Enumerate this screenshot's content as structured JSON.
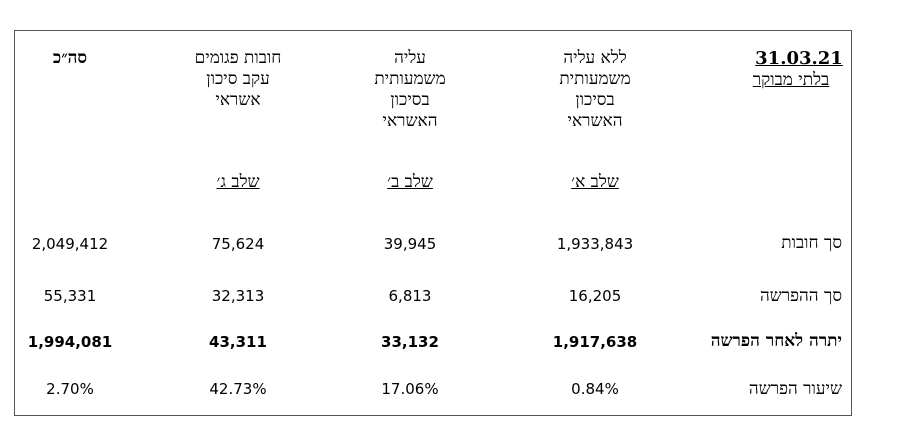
{
  "date_header": {
    "date": "31.03.21",
    "subtitle": "בלתי מבוקר"
  },
  "columns": [
    {
      "header": [
        "ללא עליה",
        "משמעותית",
        "בסיכון",
        "האשראי"
      ],
      "stage": "שלב א׳"
    },
    {
      "header": [
        "עליה",
        "משמעותית",
        "בסיכון",
        "האשראי"
      ],
      "stage": "שלב ב׳"
    },
    {
      "header": [
        "חובות פגומים",
        "עקב סיכון",
        "אשראי"
      ],
      "stage": "שלב ג׳"
    },
    {
      "header": [
        "סה״כ"
      ],
      "stage": ""
    }
  ],
  "rows": [
    {
      "label": "סך חובות",
      "values": [
        "1,933,843",
        "39,945",
        "75,624",
        "2,049,412"
      ],
      "bold": false
    },
    {
      "label": "סך ההפרשה",
      "values": [
        "16,205",
        "6,813",
        "32,313",
        "55,331"
      ],
      "bold": false
    },
    {
      "label": "יתרה לאחר הפרשה",
      "values": [
        "1,917,638",
        "33,132",
        "43,311",
        "1,994,081"
      ],
      "bold": true
    },
    {
      "label": "שיעור הפרשה",
      "values": [
        "0.84%",
        "17.06%",
        "42.73%",
        "2.70%"
      ],
      "bold": false
    }
  ]
}
